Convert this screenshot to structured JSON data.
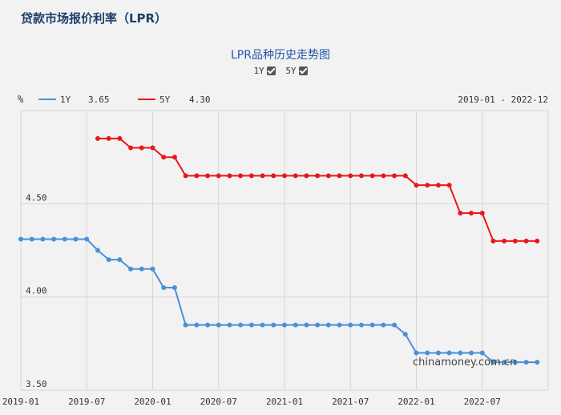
{
  "page": {
    "title": "贷款市场报价利率（LPR）"
  },
  "controls": {
    "y1_label": "1Y",
    "y5_label": "5Y"
  },
  "legend": {
    "unit": "%",
    "items": [
      {
        "name": "1Y",
        "value": "3.65",
        "color": "#4a90d9"
      },
      {
        "name": "5Y",
        "value": "4.30",
        "color": "#e8171b"
      }
    ],
    "range": "2019-01 - 2022-12"
  },
  "watermark": "chinamoney.com.cn",
  "chart_data": {
    "type": "line",
    "title": "LPR品种历史走势图",
    "ylabel": "%",
    "ylim": [
      3.5,
      5.0
    ],
    "yticks": [
      3.5,
      4.0,
      4.5
    ],
    "ytick_labels": [
      "3.50",
      "4.00",
      "4.50"
    ],
    "xticks": [
      0,
      6,
      12,
      18,
      24,
      30,
      36,
      42
    ],
    "xtick_labels": [
      "2019-01",
      "2019-07",
      "2020-01",
      "2020-07",
      "2021-01",
      "2021-07",
      "2022-01",
      "2022-07"
    ],
    "xlim": [
      0,
      48
    ],
    "grid": true,
    "series": [
      {
        "name": "1Y",
        "color": "#4a90d9",
        "x": [
          0,
          1,
          2,
          3,
          4,
          5,
          6,
          7,
          8,
          9,
          10,
          11,
          12,
          13,
          14,
          15,
          16,
          17,
          18,
          19,
          20,
          21,
          22,
          23,
          24,
          25,
          26,
          27,
          28,
          29,
          30,
          31,
          32,
          33,
          34,
          35,
          36,
          37,
          38,
          39,
          40,
          41,
          42,
          43,
          44,
          45,
          46,
          47
        ],
        "values": [
          4.31,
          4.31,
          4.31,
          4.31,
          4.31,
          4.31,
          4.31,
          4.25,
          4.2,
          4.2,
          4.15,
          4.15,
          4.15,
          4.05,
          4.05,
          3.85,
          3.85,
          3.85,
          3.85,
          3.85,
          3.85,
          3.85,
          3.85,
          3.85,
          3.85,
          3.85,
          3.85,
          3.85,
          3.85,
          3.85,
          3.85,
          3.85,
          3.85,
          3.85,
          3.85,
          3.8,
          3.7,
          3.7,
          3.7,
          3.7,
          3.7,
          3.7,
          3.7,
          3.65,
          3.65,
          3.65,
          3.65,
          3.65
        ]
      },
      {
        "name": "5Y",
        "color": "#e8171b",
        "x": [
          7,
          8,
          9,
          10,
          11,
          12,
          13,
          14,
          15,
          16,
          17,
          18,
          19,
          20,
          21,
          22,
          23,
          24,
          25,
          26,
          27,
          28,
          29,
          30,
          31,
          32,
          33,
          34,
          35,
          36,
          37,
          38,
          39,
          40,
          41,
          42,
          43,
          44,
          45,
          46,
          47
        ],
        "values": [
          4.85,
          4.85,
          4.85,
          4.8,
          4.8,
          4.8,
          4.75,
          4.75,
          4.65,
          4.65,
          4.65,
          4.65,
          4.65,
          4.65,
          4.65,
          4.65,
          4.65,
          4.65,
          4.65,
          4.65,
          4.65,
          4.65,
          4.65,
          4.65,
          4.65,
          4.65,
          4.65,
          4.65,
          4.65,
          4.6,
          4.6,
          4.6,
          4.6,
          4.45,
          4.45,
          4.45,
          4.3,
          4.3,
          4.3,
          4.3,
          4.3
        ]
      }
    ]
  }
}
